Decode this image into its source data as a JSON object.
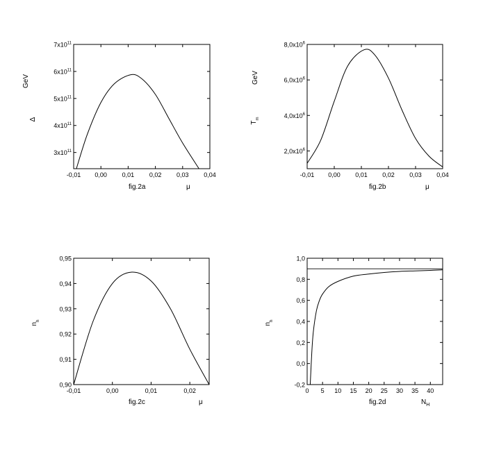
{
  "chart_data": [
    {
      "type": "line",
      "caption": "fig.2a",
      "xlabel": "μ",
      "ylabel": "Δ",
      "yunit": "GeV",
      "xlim": [
        -0.01,
        0.04
      ],
      "ylim": [
        240000000000.0,
        700000000000.0
      ],
      "xticks": [
        -0.01,
        0.0,
        0.01,
        0.02,
        0.03,
        0.04
      ],
      "xtick_labels": [
        "-0,01",
        "0,00",
        "0,01",
        "0,02",
        "0,03",
        "0,04"
      ],
      "ytick_mantissas": [
        "3x10",
        "4x10",
        "5x10",
        "6x10",
        "7x10"
      ],
      "ytick_exps": [
        "11",
        "11",
        "11",
        "11",
        "11"
      ],
      "yticks": [
        300000000000.0,
        400000000000.0,
        500000000000.0,
        600000000000.0,
        700000000000.0
      ],
      "series": [
        {
          "x": [
            -0.009,
            -0.005,
            0.0,
            0.005,
            0.011,
            0.015,
            0.02,
            0.025,
            0.03,
            0.036
          ],
          "y": [
            240000000000.0,
            367000000000.0,
            485000000000.0,
            555000000000.0,
            588000000000.0,
            573000000000.0,
            515000000000.0,
            425000000000.0,
            335000000000.0,
            240000000000.0
          ]
        }
      ]
    },
    {
      "type": "line",
      "caption": "fig.2b",
      "xlabel": "μ",
      "ylabel": "T",
      "ylabel_sub": "m",
      "yunit": "GeV",
      "xlim": [
        -0.01,
        0.04
      ],
      "ylim": [
        1000000.0,
        8000000.0
      ],
      "xticks": [
        -0.01,
        0.0,
        0.01,
        0.02,
        0.03,
        0.04
      ],
      "xtick_labels": [
        "-0,01",
        "0,00",
        "0,01",
        "0,02",
        "0,03",
        "0,04"
      ],
      "ytick_mantissas": [
        "2,0x10",
        "4,0x10",
        "6,0x10",
        "8,0x10"
      ],
      "ytick_exps": [
        "6",
        "6",
        "6",
        "6"
      ],
      "yticks": [
        2000000.0,
        4000000.0,
        6000000.0,
        8000000.0
      ],
      "series": [
        {
          "x": [
            -0.01,
            -0.005,
            0.0,
            0.005,
            0.011,
            0.015,
            0.02,
            0.025,
            0.03,
            0.035,
            0.04
          ],
          "y": [
            1300000.0,
            2600000.0,
            4800000.0,
            6800000.0,
            7700000.0,
            7400000.0,
            6100000.0,
            4300000.0,
            2700000.0,
            1700000.0,
            1100000.0
          ]
        }
      ]
    },
    {
      "type": "line",
      "caption": "fig.2c",
      "xlabel": "μ",
      "ylabel": "n",
      "ylabel_sub": "h",
      "xlim": [
        -0.01,
        0.025
      ],
      "ylim": [
        0.9,
        0.95
      ],
      "xticks": [
        -0.01,
        0.0,
        0.01,
        0.02
      ],
      "xtick_labels": [
        "-0,01",
        "0,00",
        "0,01",
        "0,02"
      ],
      "yticks": [
        0.9,
        0.91,
        0.92,
        0.93,
        0.94,
        0.95
      ],
      "ytick_labels": [
        "0,90",
        "0,91",
        "0,92",
        "0,93",
        "0,94",
        "0,95"
      ],
      "series": [
        {
          "x": [
            -0.01,
            -0.005,
            0.0,
            0.005,
            0.01,
            0.015,
            0.02,
            0.025
          ],
          "y": [
            0.9,
            0.925,
            0.94,
            0.9445,
            0.941,
            0.93,
            0.914,
            0.9
          ]
        }
      ]
    },
    {
      "type": "line",
      "caption": "fig.2d",
      "xlabel": "N",
      "xlabel_sub": "H",
      "ylabel": "n",
      "ylabel_sub": "h",
      "xlim": [
        0,
        44
      ],
      "ylim": [
        -0.2,
        1.0
      ],
      "xticks": [
        0,
        5,
        10,
        15,
        20,
        25,
        30,
        35,
        40
      ],
      "xtick_labels": [
        "0",
        "5",
        "10",
        "15",
        "20",
        "25",
        "30",
        "35",
        "40"
      ],
      "yticks": [
        -0.2,
        0.0,
        0.2,
        0.4,
        0.6,
        0.8,
        1.0
      ],
      "ytick_labels": [
        "-0,2",
        "0,0",
        "0,2",
        "0,4",
        "0,6",
        "0,8",
        "1,0"
      ],
      "hline": 0.9,
      "series": [
        {
          "x": [
            1.0,
            1.5,
            2,
            3,
            4,
            5,
            7,
            10,
            15,
            20,
            25,
            30,
            35,
            40,
            44
          ],
          "y": [
            -0.2,
            0.1,
            0.3,
            0.5,
            0.6,
            0.66,
            0.73,
            0.78,
            0.83,
            0.85,
            0.865,
            0.875,
            0.88,
            0.885,
            0.89
          ]
        }
      ]
    }
  ]
}
